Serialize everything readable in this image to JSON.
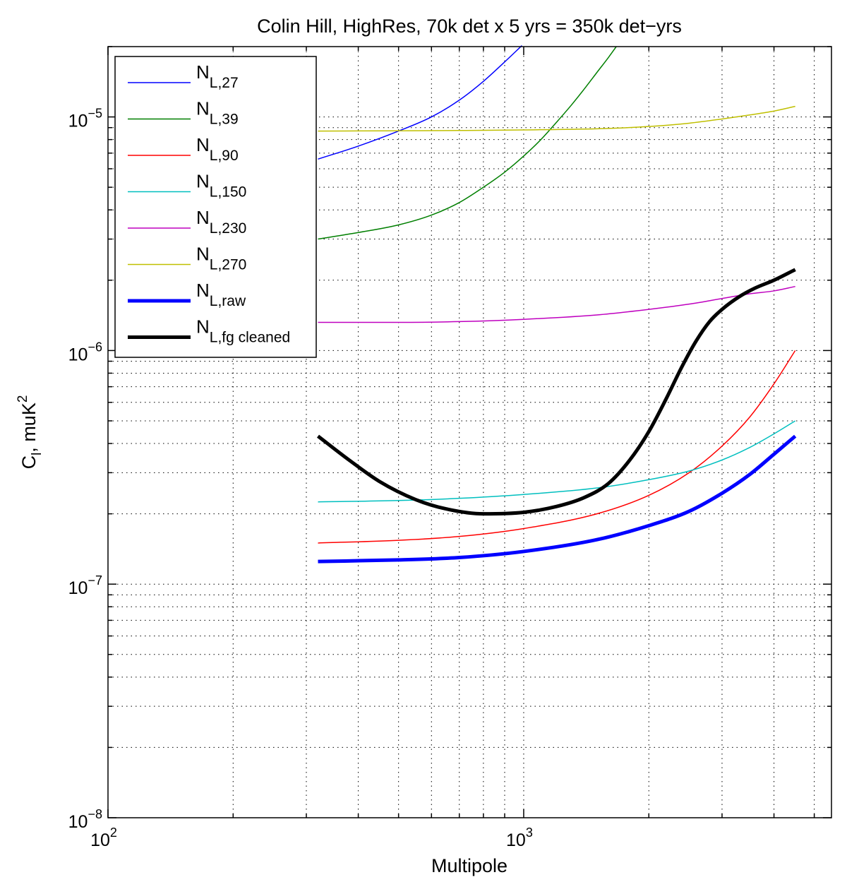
{
  "chart_data": {
    "type": "line",
    "title": "Colin Hill, HighRes, 70k det x 5 yrs = 350k det−yrs",
    "xlabel": "Multipole",
    "ylabel": "C",
    "ylabel_sub": "l",
    "ylabel_rest": ", muK",
    "ylabel_sup": "2",
    "x_scale": "log",
    "y_scale": "log",
    "xlim": [
      100,
      5500
    ],
    "ylim": [
      1e-08,
      2e-05
    ],
    "grid": true,
    "legend_position": "top-left",
    "x_ticks": [
      {
        "value": 100,
        "base": "10",
        "exp": "2"
      },
      {
        "value": 1000,
        "base": "10",
        "exp": "3"
      }
    ],
    "y_ticks": [
      {
        "value": 1e-08,
        "base": "10",
        "exp": "−8"
      },
      {
        "value": 1e-07,
        "base": "10",
        "exp": "−7"
      },
      {
        "value": 1e-06,
        "base": "10",
        "exp": "−6"
      },
      {
        "value": 1e-05,
        "base": "10",
        "exp": "−5"
      }
    ],
    "series": [
      {
        "name": "N",
        "name_sub": "L,27",
        "color": "#0000ff",
        "width": 1.5,
        "points": [
          [
            320,
            6.6e-06
          ],
          [
            400,
            7.5e-06
          ],
          [
            500,
            8.7e-06
          ],
          [
            600,
            1e-05
          ],
          [
            700,
            1.18e-05
          ],
          [
            800,
            1.42e-05
          ],
          [
            900,
            1.72e-05
          ],
          [
            990,
            2.02e-05
          ]
        ]
      },
      {
        "name": "N",
        "name_sub": "L,39",
        "color": "#007f00",
        "width": 1.5,
        "points": [
          [
            320,
            3e-06
          ],
          [
            400,
            3.2e-06
          ],
          [
            500,
            3.45e-06
          ],
          [
            600,
            3.8e-06
          ],
          [
            700,
            4.3e-06
          ],
          [
            800,
            5e-06
          ],
          [
            900,
            5.8e-06
          ],
          [
            1000,
            6.8e-06
          ],
          [
            1100,
            8e-06
          ],
          [
            1200,
            9.5e-06
          ],
          [
            1300,
            1.12e-05
          ],
          [
            1400,
            1.32e-05
          ],
          [
            1500,
            1.55e-05
          ],
          [
            1600,
            1.8e-05
          ],
          [
            1670,
            2e-05
          ]
        ]
      },
      {
        "name": "N",
        "name_sub": "L,90",
        "color": "#ff0000",
        "width": 1.5,
        "points": [
          [
            320,
            1.5e-07
          ],
          [
            500,
            1.54e-07
          ],
          [
            700,
            1.6e-07
          ],
          [
            1000,
            1.73e-07
          ],
          [
            1500,
            2e-07
          ],
          [
            2000,
            2.4e-07
          ],
          [
            2500,
            3e-07
          ],
          [
            3000,
            3.9e-07
          ],
          [
            3500,
            5.2e-07
          ],
          [
            4000,
            7.2e-07
          ],
          [
            4500,
            1e-06
          ]
        ]
      },
      {
        "name": "N",
        "name_sub": "L,150",
        "color": "#00bfbf",
        "width": 1.5,
        "points": [
          [
            320,
            2.25e-07
          ],
          [
            500,
            2.28e-07
          ],
          [
            700,
            2.33e-07
          ],
          [
            1000,
            2.42e-07
          ],
          [
            1500,
            2.58e-07
          ],
          [
            2000,
            2.8e-07
          ],
          [
            2500,
            3.05e-07
          ],
          [
            3000,
            3.4e-07
          ],
          [
            3500,
            3.85e-07
          ],
          [
            4000,
            4.4e-07
          ],
          [
            4500,
            5e-07
          ]
        ]
      },
      {
        "name": "N",
        "name_sub": "L,230",
        "color": "#bf00bf",
        "width": 1.5,
        "points": [
          [
            320,
            1.32e-06
          ],
          [
            500,
            1.32e-06
          ],
          [
            700,
            1.33e-06
          ],
          [
            1000,
            1.36e-06
          ],
          [
            1500,
            1.42e-06
          ],
          [
            2000,
            1.5e-06
          ],
          [
            2500,
            1.58e-06
          ],
          [
            3000,
            1.67e-06
          ],
          [
            3500,
            1.75e-06
          ],
          [
            4000,
            1.8e-06
          ],
          [
            4500,
            1.88e-06
          ]
        ]
      },
      {
        "name": "N",
        "name_sub": "L,270",
        "color": "#bfbf00",
        "width": 1.5,
        "points": [
          [
            320,
            8.7e-06
          ],
          [
            500,
            8.72e-06
          ],
          [
            700,
            8.75e-06
          ],
          [
            1000,
            8.8e-06
          ],
          [
            1500,
            8.9e-06
          ],
          [
            2000,
            9.1e-06
          ],
          [
            2500,
            9.4e-06
          ],
          [
            3000,
            9.8e-06
          ],
          [
            3500,
            1.02e-05
          ],
          [
            4000,
            1.06e-05
          ],
          [
            4500,
            1.11e-05
          ]
        ]
      },
      {
        "name": "N",
        "name_sub": "L,raw",
        "color": "#0000ff",
        "width": 5,
        "points": [
          [
            320,
            1.25e-07
          ],
          [
            500,
            1.27e-07
          ],
          [
            700,
            1.3e-07
          ],
          [
            1000,
            1.38e-07
          ],
          [
            1500,
            1.55e-07
          ],
          [
            2000,
            1.78e-07
          ],
          [
            2500,
            2.05e-07
          ],
          [
            3000,
            2.45e-07
          ],
          [
            3500,
            2.95e-07
          ],
          [
            4000,
            3.6e-07
          ],
          [
            4500,
            4.3e-07
          ]
        ]
      },
      {
        "name": "N",
        "name_sub": "L,fg cleaned",
        "color": "#000000",
        "width": 5,
        "points": [
          [
            320,
            4.3e-07
          ],
          [
            380,
            3.4e-07
          ],
          [
            450,
            2.75e-07
          ],
          [
            550,
            2.3e-07
          ],
          [
            650,
            2.1e-07
          ],
          [
            800,
            2e-07
          ],
          [
            1000,
            2.03e-07
          ],
          [
            1200,
            2.15e-07
          ],
          [
            1400,
            2.35e-07
          ],
          [
            1600,
            2.7e-07
          ],
          [
            1800,
            3.4e-07
          ],
          [
            2000,
            4.5e-07
          ],
          [
            2200,
            6.2e-07
          ],
          [
            2400,
            8.5e-07
          ],
          [
            2600,
            1.1e-06
          ],
          [
            2800,
            1.33e-06
          ],
          [
            3000,
            1.5e-06
          ],
          [
            3300,
            1.7e-06
          ],
          [
            3600,
            1.85e-06
          ],
          [
            4000,
            2e-06
          ],
          [
            4500,
            2.22e-06
          ]
        ]
      }
    ]
  }
}
